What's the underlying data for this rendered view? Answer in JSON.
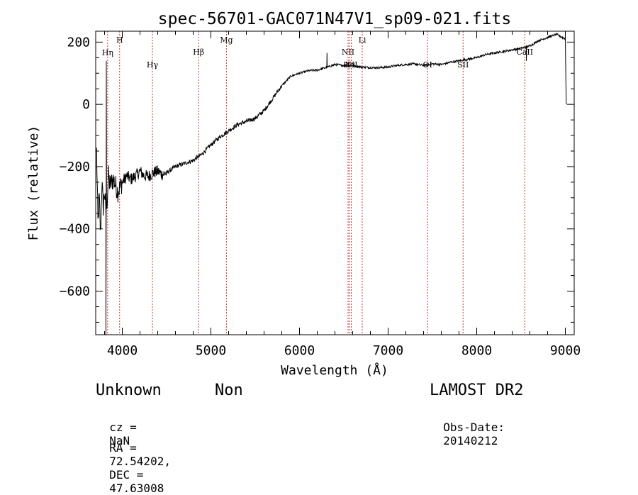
{
  "chart_data": {
    "type": "line",
    "title": "spec-56701-GAC071N47V1_sp09-021.fits",
    "xlabel": "Wavelength (Å)",
    "ylabel": "Flux (relative)",
    "xlim": [
      3700,
      9100
    ],
    "ylim": [
      -740,
      235
    ],
    "x_ticks": [
      4000,
      5000,
      6000,
      7000,
      8000,
      9000
    ],
    "y_ticks": [
      -600,
      -400,
      -200,
      0,
      200
    ],
    "line_color": "#000000",
    "marker_color": "#cc3333",
    "lines": [
      {
        "label": "Hη",
        "wavelength": 3835,
        "row": "low"
      },
      {
        "label": "H",
        "wavelength": 3970,
        "row": "high"
      },
      {
        "label": "Hγ",
        "wavelength": 4340,
        "row": "low"
      },
      {
        "label": "Hβ",
        "wavelength": 4861,
        "row": "low"
      },
      {
        "label": "Mg",
        "wavelength": 5175,
        "row": "high"
      },
      {
        "label": "NII",
        "wavelength": 6548,
        "row": "mid"
      },
      {
        "label": "Hα",
        "wavelength": 6563,
        "row": "low"
      },
      {
        "label": "NII",
        "wavelength": 6584,
        "row": "low"
      },
      {
        "label": "Li",
        "wavelength": 6708,
        "row": "high"
      },
      {
        "label": "OI",
        "wavelength": 7445,
        "row": "low"
      },
      {
        "label": "SII",
        "wavelength": 7846,
        "row": "low"
      },
      {
        "label": "CaII",
        "wavelength": 8542,
        "row": "mid"
      }
    ],
    "series": [
      {
        "name": "flux",
        "x": [
          3710,
          3725,
          3740,
          3755,
          3770,
          3785,
          3800,
          3815,
          3830,
          3845,
          3860,
          3900,
          3950,
          4000,
          4050,
          4100,
          4150,
          4200,
          4250,
          4300,
          4350,
          4400,
          4450,
          4500,
          4600,
          4700,
          4800,
          4900,
          5000,
          5100,
          5200,
          5300,
          5400,
          5500,
          5600,
          5700,
          5800,
          5900,
          6000,
          6100,
          6200,
          6300,
          6400,
          6500,
          6600,
          6700,
          6800,
          6900,
          7000,
          7100,
          7200,
          7300,
          7400,
          7500,
          7600,
          7700,
          7800,
          7900,
          8000,
          8100,
          8200,
          8300,
          8400,
          8500,
          8600,
          8700,
          8800,
          8900,
          9000,
          9010
        ],
        "y": [
          -150,
          -380,
          -300,
          -420,
          -250,
          -330,
          -280,
          -350,
          -300,
          -230,
          -260,
          -240,
          -280,
          -250,
          -230,
          -240,
          -230,
          -215,
          -230,
          -230,
          -220,
          -215,
          -225,
          -220,
          -200,
          -190,
          -180,
          -160,
          -130,
          -105,
          -85,
          -65,
          -55,
          -45,
          -20,
          20,
          60,
          90,
          100,
          108,
          110,
          118,
          128,
          125,
          125,
          120,
          118,
          118,
          120,
          125,
          128,
          130,
          125,
          130,
          128,
          135,
          140,
          145,
          150,
          160,
          165,
          170,
          175,
          180,
          188,
          205,
          215,
          225,
          210,
          0
        ],
        "spikes": [
          {
            "x": 3815,
            "y": -740
          },
          {
            "x": 3820,
            "y": 140
          },
          {
            "x": 6310,
            "y": 165
          },
          {
            "x": 8560,
            "y": 140
          }
        ]
      }
    ]
  },
  "footer": {
    "object_class": "Unknown",
    "object_subclass": "Non",
    "survey": "LAMOST DR2",
    "cz_label": "cz =",
    "cz_value": "NaN",
    "obs_date_label": "Obs-Date:",
    "obs_date_value": "20140212",
    "ra_label": "RA =",
    "ra_value": "72.54202,",
    "dec_label": "DEC =",
    "dec_value": "47.63008"
  }
}
